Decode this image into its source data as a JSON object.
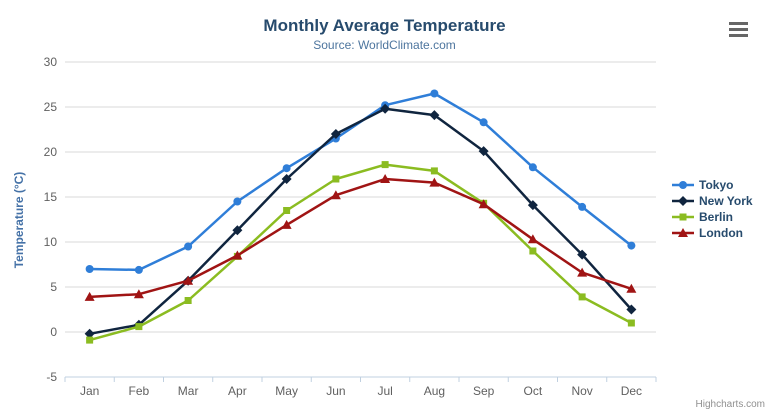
{
  "chart_data": {
    "type": "line",
    "title": "Monthly Average Temperature",
    "subtitle": "Source: WorldClimate.com",
    "xlabel": "",
    "ylabel": "Temperature (°C)",
    "categories": [
      "Jan",
      "Feb",
      "Mar",
      "Apr",
      "May",
      "Jun",
      "Jul",
      "Aug",
      "Sep",
      "Oct",
      "Nov",
      "Dec"
    ],
    "series": [
      {
        "name": "Tokyo",
        "color": "#2f7ed8",
        "marker": "circle",
        "values": [
          7.0,
          6.9,
          9.5,
          14.5,
          18.2,
          21.5,
          25.2,
          26.5,
          23.3,
          18.3,
          13.9,
          9.6
        ]
      },
      {
        "name": "New York",
        "color": "#10253f",
        "marker": "diamond",
        "values": [
          -0.2,
          0.8,
          5.7,
          11.3,
          17.0,
          22.0,
          24.8,
          24.1,
          20.1,
          14.1,
          8.6,
          2.5
        ]
      },
      {
        "name": "Berlin",
        "color": "#8bbc21",
        "marker": "square",
        "values": [
          -0.9,
          0.6,
          3.5,
          8.4,
          13.5,
          17.0,
          18.6,
          17.9,
          14.3,
          9.0,
          3.9,
          1.0
        ]
      },
      {
        "name": "London",
        "color": "#a01414",
        "marker": "triangle",
        "values": [
          3.9,
          4.2,
          5.7,
          8.5,
          11.9,
          15.2,
          17.0,
          16.6,
          14.2,
          10.3,
          6.6,
          4.8
        ]
      }
    ],
    "ylim": [
      -5,
      30
    ],
    "ytick_step": 5,
    "grid": true,
    "legend_position": "right",
    "colors": {
      "grid_line": "#d8d8d8",
      "axis_line": "#c0d0e0",
      "axis_label": "#606060",
      "title": "#274b6d",
      "subtitle": "#4d759e",
      "axis_title": "#4572a7",
      "legend_text": "#274b6d",
      "menu_icon": "#666666",
      "credit_text": "#909090"
    }
  },
  "icons": {
    "context_menu": "hamburger-icon"
  },
  "credits": {
    "label": "Highcharts.com"
  }
}
